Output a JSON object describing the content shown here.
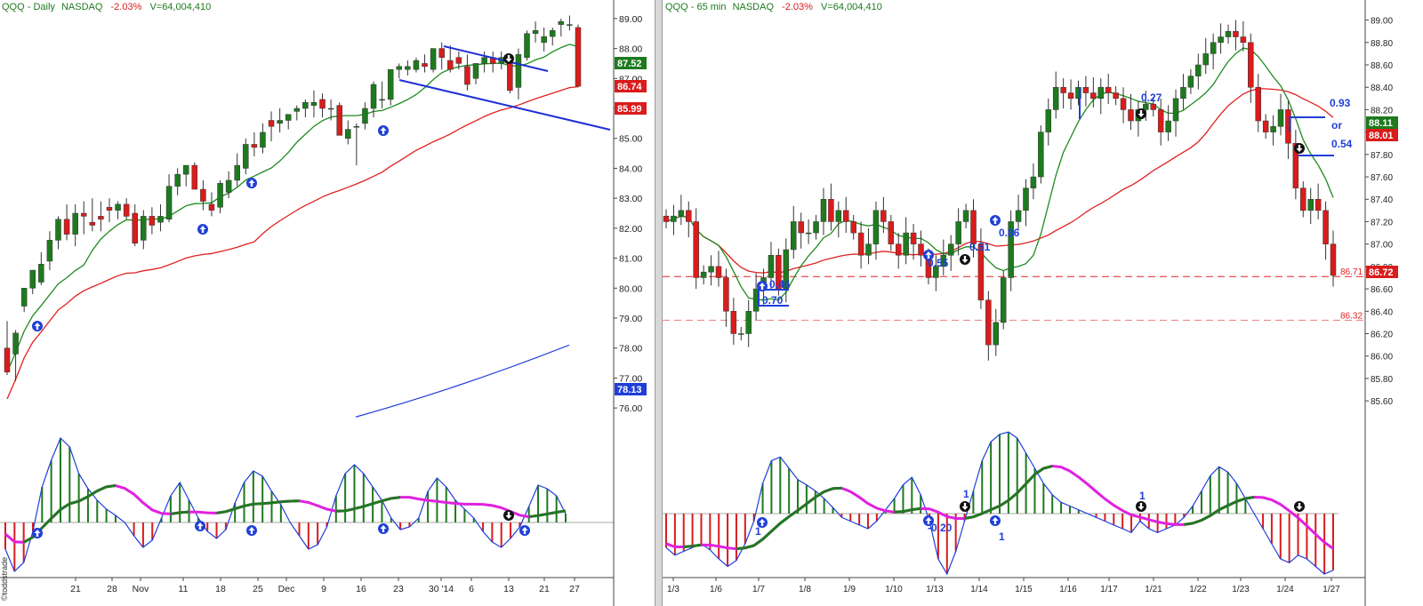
{
  "left": {
    "header": {
      "symbol": "QQQ",
      "interval": "Daily",
      "exchange": "NASDAQ",
      "change": "-2.03%",
      "volume": "V=64,004,410"
    },
    "price_axis": [
      "89.00",
      "88.00",
      "87.00",
      "86.00",
      "85.00",
      "84.00",
      "83.00",
      "82.00",
      "81.00",
      "80.00",
      "79.00",
      "78.00",
      "77.00",
      "76.00"
    ],
    "price_tags": [
      {
        "label": "87.52",
        "color": "#1e7a1e"
      },
      {
        "label": "86.74",
        "color": "#d91c1c"
      },
      {
        "label": "85.99",
        "color": "#d91c1c"
      },
      {
        "label": "78.13",
        "color": "#1f3fd8"
      }
    ],
    "x_axis": [
      "21",
      "28",
      "Nov",
      "11",
      "18",
      "25",
      "Dec",
      "9",
      "16",
      "23",
      "30 '14",
      "6",
      "13",
      "21",
      "27"
    ],
    "watermark": "©toddstrade"
  },
  "right": {
    "header": {
      "symbol": "QQQ",
      "interval": "65 min",
      "exchange": "NASDAQ",
      "change": "-2.03%",
      "volume": "V=64,004,410"
    },
    "price_axis": [
      "89.00",
      "88.80",
      "88.60",
      "88.40",
      "88.20",
      "88.00",
      "87.80",
      "87.60",
      "87.40",
      "87.20",
      "87.00",
      "86.80",
      "86.60",
      "86.40",
      "86.20",
      "86.00",
      "85.80",
      "85.60"
    ],
    "price_tags": [
      {
        "label": "88.11",
        "color": "#1e7a1e"
      },
      {
        "label": "88.01",
        "color": "#d91c1c"
      },
      {
        "label": "86.72",
        "color": "#d91c1c"
      }
    ],
    "level_labels": [
      {
        "label": "86.71"
      },
      {
        "label": "86.32"
      }
    ],
    "annotations": [
      "0.46",
      "0.70",
      "0.55",
      "0.51",
      "0.86",
      "0.27",
      "0.93",
      "or",
      "0.54",
      "-0.20"
    ],
    "osc_labels": [
      "1",
      "1",
      "1",
      "1"
    ],
    "x_axis": [
      "1/3",
      "1/6",
      "1/7",
      "1/8",
      "1/9",
      "1/10",
      "1/13",
      "1/14",
      "1/15",
      "1/16",
      "1/17",
      "1/21",
      "1/22",
      "1/23",
      "1/24",
      "1/27"
    ]
  },
  "colors": {
    "up": "#1e7a1e",
    "down": "#d91c1c",
    "fast_ma": "#1e8a1e",
    "slow_ma": "#e02020",
    "long_ma": "#1f3fd8",
    "signal": "#e020e0",
    "trend": "#1f2fd8",
    "arrow": "#1f3fd8"
  },
  "chart_data": [
    {
      "type": "candlestick",
      "title": "QQQ - Daily NASDAQ",
      "x": [
        "10/17",
        "10/18",
        "10/21",
        "10/22",
        "10/23",
        "10/24",
        "10/25",
        "10/28",
        "10/29",
        "10/30",
        "10/31",
        "11/1",
        "11/4",
        "11/5",
        "11/6",
        "11/7",
        "11/8",
        "11/11",
        "11/12",
        "11/13",
        "11/14",
        "11/15",
        "11/18",
        "11/19",
        "11/20",
        "11/21",
        "11/22",
        "11/25",
        "11/26",
        "11/27",
        "11/29",
        "12/2",
        "12/3",
        "12/4",
        "12/5",
        "12/6",
        "12/9",
        "12/10",
        "12/11",
        "12/12",
        "12/13",
        "12/16",
        "12/17",
        "12/18",
        "12/19",
        "12/20",
        "12/23",
        "12/24",
        "12/26",
        "12/27",
        "12/30",
        "12/31",
        "1/2",
        "1/3",
        "1/6",
        "1/7",
        "1/8",
        "1/9",
        "1/10",
        "1/13",
        "1/14",
        "1/15",
        "1/16",
        "1/17",
        "1/21",
        "1/22",
        "1/23",
        "1/24"
      ],
      "open": [
        78.0,
        77.8,
        79.4,
        80.0,
        80.2,
        80.9,
        81.6,
        82.3,
        81.8,
        82.5,
        82.2,
        82.4,
        82.7,
        82.6,
        82.8,
        82.5,
        81.6,
        82.4,
        82.2,
        82.3,
        83.4,
        83.8,
        84.1,
        83.3,
        82.8,
        82.7,
        83.2,
        83.6,
        84.0,
        84.8,
        84.7,
        85.6,
        85.5,
        85.6,
        85.9,
        86.0,
        86.1,
        86.3,
        86.0,
        86.1,
        85.0,
        85.4,
        85.5,
        86.0,
        86.3,
        86.3,
        87.3,
        87.3,
        87.3,
        87.5,
        87.3,
        88.0,
        87.6,
        87.7,
        87.4,
        87.0,
        87.5,
        87.7,
        87.5,
        87.6,
        86.7,
        87.7,
        88.5,
        88.2,
        88.4,
        88.8,
        88.8,
        88.7
      ],
      "high": [
        78.9,
        78.6,
        80.0,
        80.6,
        81.2,
        81.9,
        82.4,
        82.8,
        82.8,
        82.9,
        83.0,
        82.9,
        83.0,
        82.9,
        83.0,
        82.8,
        82.6,
        82.7,
        82.8,
        83.8,
        84.0,
        84.1,
        84.2,
        83.6,
        83.2,
        83.6,
        83.9,
        84.5,
        85.0,
        85.2,
        85.5,
        85.9,
        86.0,
        85.8,
        86.1,
        86.3,
        86.6,
        86.5,
        86.3,
        86.2,
        85.6,
        85.5,
        86.2,
        86.9,
        86.9,
        87.3,
        87.5,
        87.6,
        87.7,
        87.8,
        88.0,
        88.2,
        88.1,
        87.9,
        87.8,
        87.5,
        87.9,
        87.9,
        87.9,
        87.8,
        88.0,
        88.6,
        88.9,
        88.7,
        88.7,
        89.0,
        89.1,
        88.8
      ],
      "low": [
        77.1,
        76.9,
        79.2,
        79.8,
        80.1,
        80.6,
        81.3,
        81.6,
        81.4,
        81.8,
        81.9,
        81.9,
        82.2,
        82.3,
        82.3,
        81.4,
        81.3,
        81.8,
        81.9,
        82.2,
        83.1,
        83.4,
        83.3,
        82.6,
        82.4,
        82.5,
        83.0,
        83.4,
        83.8,
        84.4,
        84.5,
        84.9,
        85.2,
        85.3,
        85.6,
        85.7,
        85.7,
        85.7,
        85.6,
        85.1,
        84.8,
        84.1,
        85.3,
        85.7,
        86.0,
        86.1,
        87.0,
        87.1,
        87.2,
        87.2,
        87.2,
        87.3,
        87.2,
        87.3,
        86.6,
        86.8,
        87.2,
        87.2,
        87.3,
        86.5,
        86.3,
        87.6,
        88.2,
        87.9,
        88.1,
        88.4,
        88.6,
        86.7
      ],
      "close": [
        77.2,
        78.5,
        80.0,
        80.6,
        80.8,
        81.6,
        82.3,
        81.8,
        82.5,
        82.4,
        82.1,
        82.3,
        82.6,
        82.8,
        82.4,
        81.5,
        82.4,
        82.1,
        82.4,
        83.4,
        83.8,
        84.1,
        83.3,
        82.9,
        82.6,
        83.5,
        83.6,
        84.1,
        84.8,
        84.7,
        85.2,
        85.4,
        85.6,
        85.8,
        86.0,
        86.2,
        86.2,
        86.0,
        86.0,
        85.1,
        85.3,
        85.4,
        86.0,
        86.8,
        86.3,
        87.3,
        87.4,
        87.4,
        87.6,
        87.4,
        88.0,
        87.7,
        87.3,
        87.5,
        86.8,
        87.5,
        87.7,
        87.5,
        87.7,
        86.6,
        87.8,
        88.5,
        88.6,
        88.4,
        88.6,
        88.9,
        88.8,
        86.74
      ],
      "ylim": [
        75.5,
        89.5
      ],
      "ma_fast": 87.52,
      "ma_slow": 85.99,
      "ma_long": 78.13
    },
    {
      "type": "candlestick",
      "title": "QQQ - 65 min NASDAQ",
      "x_labels": [
        "1/3",
        "1/6",
        "1/7",
        "1/8",
        "1/9",
        "1/10",
        "1/13",
        "1/14",
        "1/15",
        "1/16",
        "1/17",
        "1/21",
        "1/22",
        "1/23",
        "1/24",
        "1/27"
      ],
      "close": [
        87.2,
        87.25,
        87.3,
        87.2,
        86.7,
        86.75,
        86.8,
        86.7,
        86.4,
        86.2,
        86.2,
        86.4,
        86.6,
        86.7,
        86.9,
        86.6,
        86.95,
        87.2,
        87.1,
        87.1,
        87.2,
        87.4,
        87.2,
        87.3,
        87.2,
        87.1,
        86.9,
        87.0,
        87.3,
        87.2,
        87.0,
        86.9,
        87.1,
        87.0,
        86.9,
        86.7,
        86.8,
        86.9,
        87.0,
        87.2,
        87.3,
        87.0,
        86.5,
        86.1,
        86.3,
        86.7,
        87.2,
        87.3,
        87.5,
        87.6,
        88.0,
        88.2,
        88.4,
        88.35,
        88.3,
        88.4,
        88.35,
        88.3,
        88.4,
        88.35,
        88.3,
        88.2,
        88.1,
        88.2,
        88.25,
        88.2,
        88.0,
        88.1,
        88.3,
        88.4,
        88.5,
        88.6,
        88.7,
        88.8,
        88.85,
        88.9,
        88.85,
        88.8,
        88.4,
        88.1,
        88.0,
        88.05,
        88.2,
        87.9,
        87.5,
        87.3,
        87.4,
        87.3,
        87.0,
        86.72
      ],
      "levels": [
        86.71,
        86.32
      ],
      "ylim": [
        85.45,
        89.1
      ],
      "ma_fast": 88.11,
      "ma_slow": 88.01
    }
  ]
}
